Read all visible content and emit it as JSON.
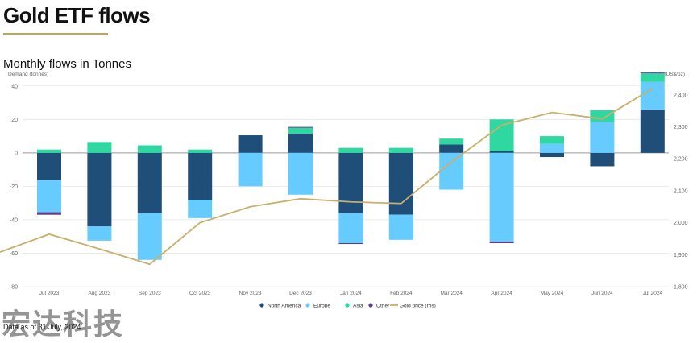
{
  "header": {
    "title": "Gold ETF flows",
    "subtitle": "Monthly flows in Tonnes"
  },
  "footer": {
    "note": "Data as of 31 July, 2024",
    "watermark": "宏达科技"
  },
  "colors": {
    "north_america": "#1f4e79",
    "europe": "#66ccff",
    "asia": "#2ed8a0",
    "other": "#5b3b8c",
    "gold_price": "#c8b06a",
    "grid": "#e6e6e6",
    "axis_text": "#666666"
  },
  "chart_data": {
    "type": "bar",
    "stacked": true,
    "ylabel": "Demand (tonnes)",
    "y2label": "Gold (US$/oz)",
    "ylim": [
      -80,
      50
    ],
    "yticks": [
      -80,
      -60,
      -40,
      -20,
      0,
      20,
      40
    ],
    "y2lim": [
      1800,
      2480
    ],
    "y2ticks": [
      1800,
      1900,
      2000,
      2100,
      2200,
      2300,
      2400
    ],
    "y2tick_labels": [
      "1,800",
      "1,900",
      "2,000",
      "2,100",
      "2,200",
      "2,300",
      "2,400"
    ],
    "grid": true,
    "legend_position": "bottom",
    "categories": [
      "Jul 2023",
      "Aug 2023",
      "Sep 2023",
      "Oct 2023",
      "Nov 2023",
      "Dec 2023",
      "Jan 2024",
      "Feb 2024",
      "Mar 2024",
      "Apr 2024",
      "May 2024",
      "Jun 2024",
      "Jul 2024"
    ],
    "series": [
      {
        "name": "North America",
        "values": [
          -16.5,
          -44,
          -36,
          -28,
          10.5,
          11.5,
          -36,
          -37,
          5,
          1,
          -2.5,
          -8,
          26
        ]
      },
      {
        "name": "Europe",
        "values": [
          -19,
          -8.5,
          -28,
          -11,
          -20,
          -25,
          -18,
          -15,
          -22,
          -53,
          5.5,
          18.5,
          16.5
        ]
      },
      {
        "name": "Asia",
        "values": [
          2,
          6.5,
          4.5,
          2,
          0,
          3.5,
          3,
          3,
          3.5,
          19,
          4.5,
          7,
          5
        ]
      },
      {
        "name": "Other",
        "values": [
          -1.5,
          0,
          0,
          0,
          0,
          0.5,
          -0.5,
          0,
          0,
          -1,
          0,
          0,
          0.5
        ]
      }
    ],
    "line_series": {
      "name": "Gold price (rhs)",
      "axis": "right",
      "values": [
        1964,
        1918,
        1870,
        2000,
        2050,
        2075,
        2065,
        2060,
        2190,
        2305,
        2345,
        2325,
        2420
      ]
    },
    "line_start_value": 1908
  }
}
